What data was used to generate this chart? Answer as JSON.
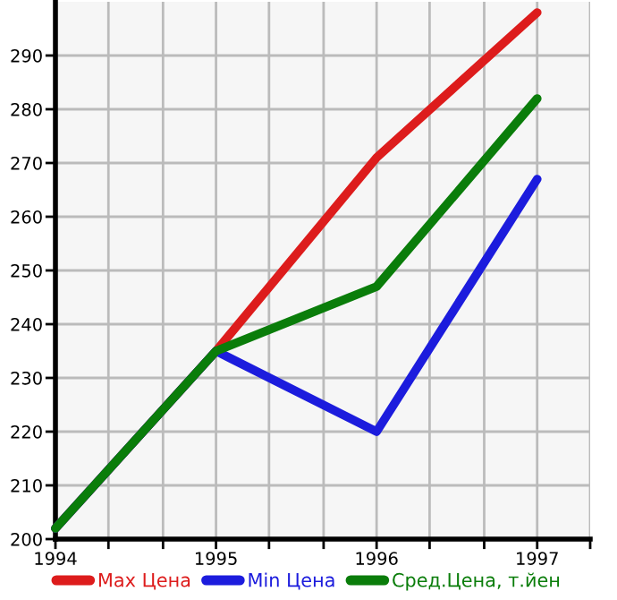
{
  "chart_data": {
    "type": "line",
    "x": [
      1994,
      1995,
      1996,
      1997
    ],
    "series": [
      {
        "name": "Max Цена",
        "color": "#dd1c1c",
        "values": [
          202,
          235,
          271,
          298
        ]
      },
      {
        "name": "Min Цена",
        "color": "#1c1cdd",
        "values": [
          202,
          235,
          220,
          267
        ]
      },
      {
        "name": "Сред.Цена, т.йен",
        "color": "#0a7d0a",
        "values": [
          202,
          235,
          247,
          282
        ]
      }
    ],
    "xlim": [
      1994,
      1997.33
    ],
    "ylim": [
      200,
      300
    ],
    "xticks": [
      1994,
      {
        "value": 1994.33,
        "label": null
      },
      {
        "value": 1994.67,
        "label": null
      },
      1995,
      {
        "value": 1995.33,
        "label": null
      },
      {
        "value": 1995.67,
        "label": null
      },
      1996,
      {
        "value": 1996.33,
        "label": null
      },
      {
        "value": 1996.67,
        "label": null
      },
      1997,
      {
        "value": 1997.33,
        "label": null
      }
    ],
    "yticks": [
      200,
      210,
      220,
      230,
      240,
      250,
      260,
      270,
      280,
      290
    ],
    "grid": true,
    "legend": "bottom",
    "marker": "none",
    "line_style": "solid"
  }
}
